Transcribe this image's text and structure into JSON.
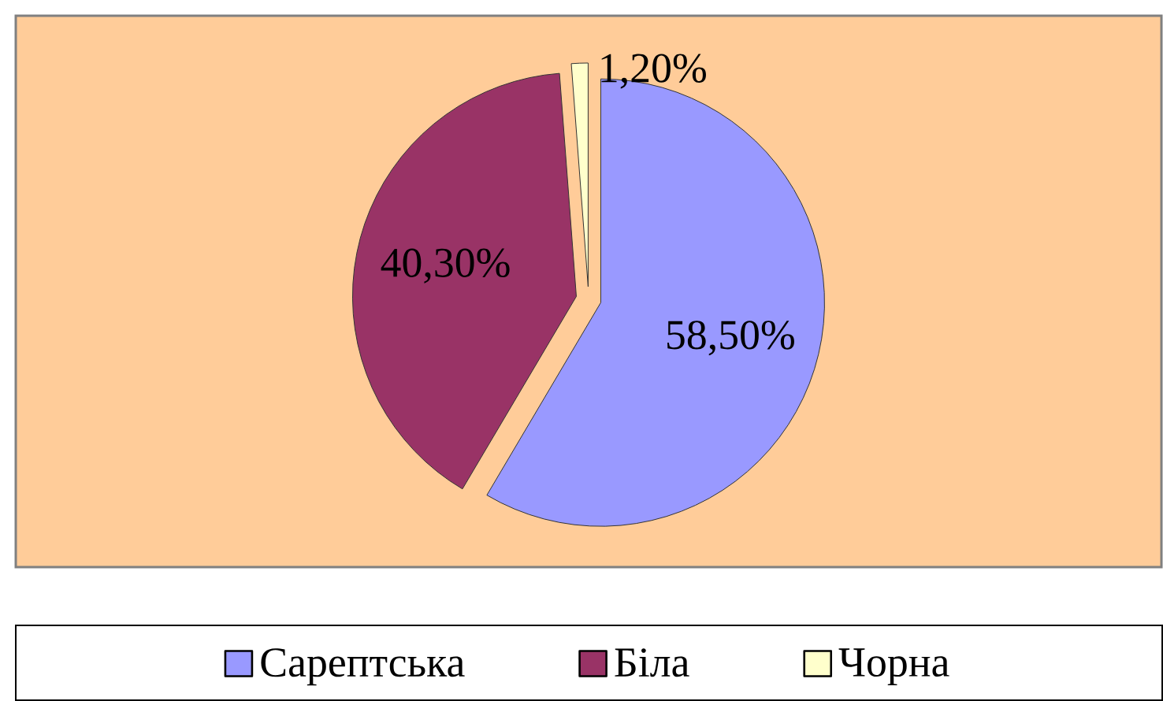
{
  "chart_data": {
    "type": "pie",
    "categories": [
      "Сарептська",
      "Біла",
      "Чорна"
    ],
    "values": [
      58.5,
      40.3,
      1.2
    ],
    "colors": [
      "#9999ff",
      "#993366",
      "#ffffcc"
    ],
    "value_labels": [
      "58,50%",
      "40,30%",
      "1,20%"
    ],
    "legend": "bottom"
  }
}
